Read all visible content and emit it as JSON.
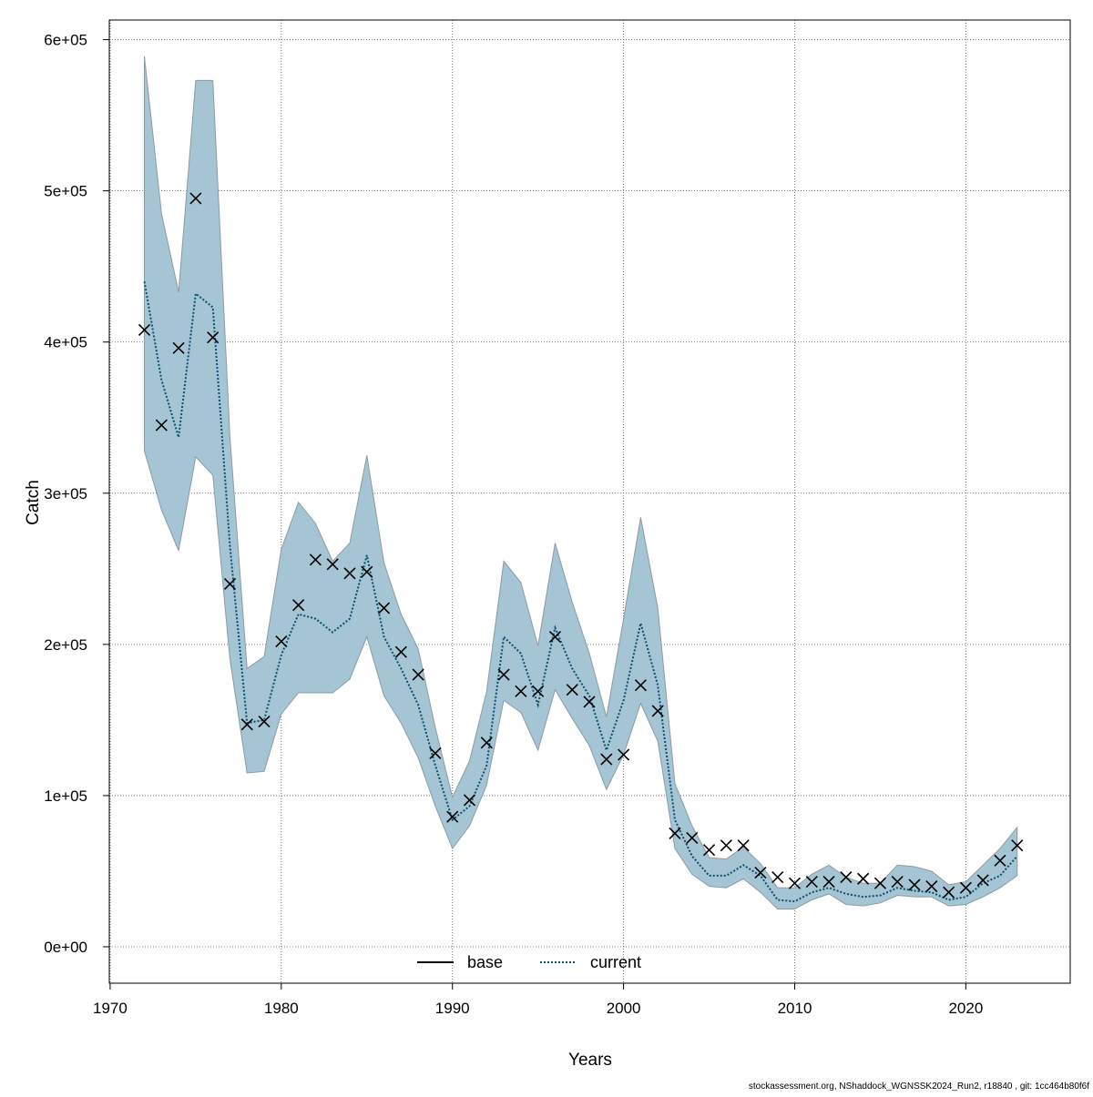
{
  "chart_data": {
    "type": "line",
    "x_label": "Years",
    "y_label": "Catch",
    "footer": "stockassessment.org, NShaddock_WGNSSK2024_Run2, r18840 , git: 1cc464b80f6f",
    "grid": true,
    "legend_position": "bottom",
    "x": [
      1972,
      1973,
      1974,
      1975,
      1976,
      1977,
      1978,
      1979,
      1980,
      1981,
      1982,
      1983,
      1984,
      1985,
      1986,
      1987,
      1988,
      1989,
      1990,
      1991,
      1992,
      1993,
      1994,
      1995,
      1996,
      1997,
      1998,
      1999,
      2000,
      2001,
      2002,
      2003,
      2004,
      2005,
      2006,
      2007,
      2008,
      2009,
      2010,
      2011,
      2012,
      2013,
      2014,
      2015,
      2016,
      2017,
      2018,
      2019,
      2020,
      2021,
      2022,
      2023
    ],
    "xlim": [
      1969.95,
      2026.1
    ],
    "xticks": [
      1970,
      1980,
      1990,
      2000,
      2010,
      2020
    ],
    "ylim": [
      -24100,
      613000
    ],
    "yticks": [
      {
        "value": 0,
        "label": "0e+00"
      },
      {
        "value": 100000,
        "label": "1e+05"
      },
      {
        "value": 200000,
        "label": "2e+05"
      },
      {
        "value": 300000,
        "label": "3e+05"
      },
      {
        "value": 400000,
        "label": "4e+05"
      },
      {
        "value": 500000,
        "label": "5e+05"
      },
      {
        "value": 600000,
        "label": "6e+05"
      }
    ],
    "band_color": "#a5c4d4",
    "series": [
      {
        "name": "base",
        "color": "#000000",
        "dash": "solid"
      },
      {
        "name": "current",
        "color": "#0a4f6e",
        "dash": "dotted",
        "values": [
          440000,
          375000,
          337000,
          432000,
          423000,
          265000,
          148000,
          150000,
          193000,
          220000,
          217000,
          208000,
          217000,
          259000,
          205000,
          184000,
          160000,
          120000,
          84000,
          93000,
          120000,
          205000,
          194000,
          160000,
          211000,
          184000,
          166000,
          130000,
          163000,
          214000,
          173000,
          84000,
          60000,
          47000,
          47000,
          54000,
          47000,
          31000,
          30000,
          36000,
          39000,
          35000,
          33000,
          34000,
          39000,
          37000,
          36000,
          31000,
          33000,
          42000,
          47000,
          60000
        ],
        "upper": [
          589000,
          485000,
          433000,
          573000,
          573000,
          337000,
          184000,
          192000,
          263000,
          294000,
          280000,
          255000,
          267000,
          325000,
          254000,
          220000,
          197000,
          145000,
          99000,
          123000,
          169000,
          255000,
          241000,
          199000,
          267000,
          228000,
          194000,
          152000,
          217000,
          284000,
          224000,
          108000,
          80000,
          59000,
          58000,
          66000,
          55000,
          39000,
          39000,
          48000,
          54000,
          46000,
          42000,
          42000,
          54000,
          53000,
          50000,
          41000,
          43000,
          54000,
          65000,
          79000
        ],
        "lower": [
          328000,
          289000,
          262000,
          324000,
          312000,
          190000,
          115000,
          116000,
          154000,
          168000,
          168000,
          168000,
          177000,
          205000,
          166000,
          148000,
          125000,
          93000,
          65000,
          80000,
          107000,
          163000,
          155000,
          130000,
          170000,
          151000,
          133000,
          104000,
          127000,
          161000,
          136000,
          65000,
          48000,
          40000,
          39000,
          45000,
          36000,
          25000,
          25000,
          31000,
          35000,
          28000,
          27000,
          29000,
          34000,
          33000,
          33000,
          27000,
          28000,
          33000,
          39000,
          47000
        ]
      }
    ],
    "observations": {
      "marker": "x",
      "color": "#000000",
      "values": [
        408000,
        345000,
        396000,
        495000,
        403000,
        240000,
        147000,
        149000,
        202000,
        226000,
        256000,
        253000,
        247000,
        248000,
        224000,
        195000,
        180000,
        128000,
        86000,
        97000,
        135000,
        180000,
        169000,
        169000,
        205000,
        170000,
        162000,
        124000,
        127000,
        173000,
        156000,
        75000,
        72000,
        64000,
        67000,
        67000,
        49000,
        46000,
        42000,
        43000,
        43000,
        46000,
        45000,
        42000,
        43000,
        41000,
        40000,
        36000,
        39000,
        44000,
        57000,
        67000
      ]
    }
  }
}
